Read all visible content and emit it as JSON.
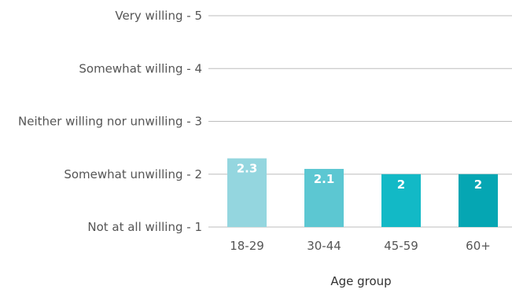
{
  "chart_data": {
    "type": "bar",
    "categories": [
      "18-29",
      "30-44",
      "45-59",
      "60+"
    ],
    "values": [
      2.3,
      2.1,
      2,
      2
    ],
    "value_labels": [
      "2.3",
      "2.1",
      "2",
      "2"
    ],
    "bar_colors": [
      "#94d6df",
      "#5cc7d2",
      "#12b9c6",
      "#05a6b3"
    ],
    "xlabel": "Age group",
    "ylim": [
      1,
      5
    ],
    "yticks": [
      1,
      2,
      3,
      4,
      5
    ],
    "ytick_labels": [
      "Not at all willing - 1",
      "Somewhat unwilling - 2",
      "Neither willing nor unwilling - 3",
      "Somewhat willing - 4",
      "Very willing - 5"
    ],
    "grid": true,
    "gridline_color": "#bdbdbd",
    "legend": "none"
  }
}
